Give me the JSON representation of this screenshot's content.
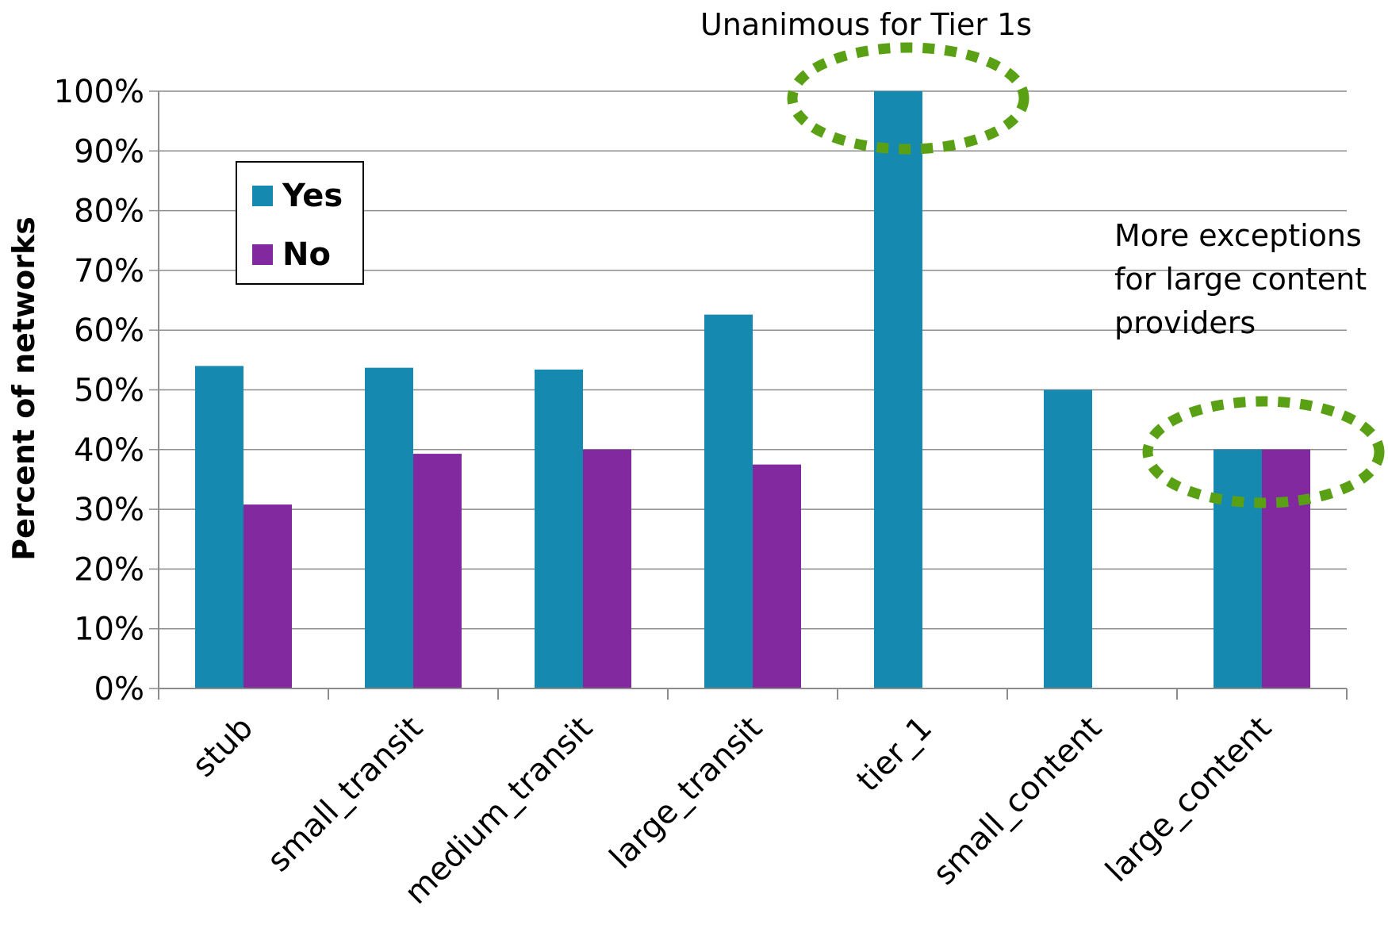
{
  "chart_data": {
    "type": "bar",
    "categories": [
      "stub",
      "small_transit",
      "medium_transit",
      "large_transit",
      "tier_1",
      "small_content",
      "large_content"
    ],
    "series": [
      {
        "name": "Yes",
        "values": [
          54,
          53.7,
          53.4,
          62.6,
          100,
          50,
          40
        ]
      },
      {
        "name": "No",
        "values": [
          30.8,
          39.3,
          40,
          37.5,
          0,
          0,
          40
        ]
      }
    ],
    "ylabel": "Percent of networks",
    "ylim": [
      0,
      100
    ],
    "yticks": [
      "0%",
      "10%",
      "20%",
      "30%",
      "40%",
      "50%",
      "60%",
      "70%",
      "80%",
      "90%",
      "100%"
    ],
    "grid": true,
    "legend": {
      "placement": "upper-left",
      "entries": [
        "Yes",
        "No"
      ]
    },
    "colors": {
      "Yes": "#1689b0",
      "No": "#8229a0",
      "highlight": "#5aa014"
    },
    "annotations": [
      {
        "text": "Unanimous for Tier 1s",
        "target": "tier_1"
      },
      {
        "lines": [
          "More exceptions",
          "for large content",
          "providers"
        ],
        "target": "large_content"
      }
    ]
  }
}
